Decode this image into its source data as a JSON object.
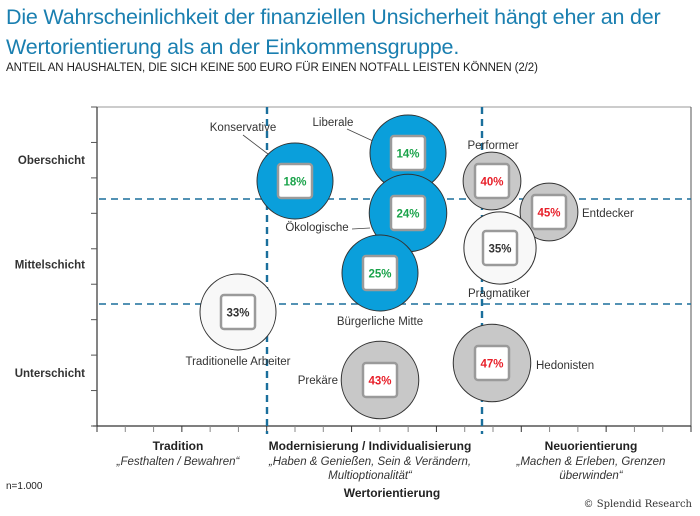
{
  "header": {
    "title": "Die Wahrscheinlichkeit der finanziellen Unsicherheit hängt eher an der Wertorientierung als an der Einkommensgruppe.",
    "subtitle": "ANTEIL AN HAUSHALTEN, DIE SICH KEINE 500 EURO FÜR EINEN NOTFALL LEISTEN KÖNNEN (2/2)"
  },
  "footer": {
    "sample_note": "n=1.000",
    "credit": "© Splendid Research"
  },
  "colors": {
    "title": "#1a7fb0",
    "blue_fill": "#0a9fdb",
    "gray_fill": "#c8c8c8",
    "white_fill": "#f8f8f8",
    "pct_green": "#1aa34a",
    "pct_red": "#e8202a",
    "pct_dark": "#333333",
    "divider": "#1a6f9c"
  },
  "chart_data": {
    "type": "scatter",
    "subtype": "bubble",
    "title": "Anteil an Haushalten, die sich keine 500 Euro für einen Notfall leisten können",
    "xlabel": "Wertorientierung",
    "ylabel": "",
    "x_categories": [
      {
        "label": "Tradition",
        "sub": "„Festhalten / Bewahren“"
      },
      {
        "label": "Modernisierung / Individualisierung",
        "sub": "„Haben & Genießen, Sein & Verändern, Multioptionalität“"
      },
      {
        "label": "Neuorientierung",
        "sub": "„Machen & Erleben, Grenzen überwinden“"
      }
    ],
    "y_categories": [
      "Unterschicht",
      "Mittelschicht",
      "Oberschicht"
    ],
    "xlim": [
      0,
      3
    ],
    "ylim": [
      0,
      3
    ],
    "grid": false,
    "dividers": {
      "x": [
        1,
        2
      ],
      "y": [
        1,
        2
      ]
    },
    "x_minor_ticks_per_unit": 7,
    "y_minor_ticks_per_unit": 3,
    "points": [
      {
        "name": "Konservative",
        "x": 0.99,
        "y": 2.51,
        "value": 18,
        "label": "18%",
        "group": "blue",
        "size": 1.0,
        "label_pos": "top-left-leader"
      },
      {
        "name": "Liberale",
        "x": 1.53,
        "y": 2.78,
        "value": 14,
        "label": "14%",
        "group": "blue",
        "size": 1.0,
        "label_pos": "top-left-leader"
      },
      {
        "name": "Ökologische",
        "x": 1.53,
        "y": 2.22,
        "value": 24,
        "label": "24%",
        "group": "blue",
        "size": 1.02,
        "label_pos": "left-leader"
      },
      {
        "name": "Bürgerliche Mitte",
        "x": 1.39,
        "y": 1.65,
        "value": 25,
        "label": "25%",
        "group": "blue",
        "size": 1.0,
        "label_pos": "bottom"
      },
      {
        "name": "Performer",
        "x": 1.97,
        "y": 2.51,
        "value": 40,
        "label": "40%",
        "group": "gray",
        "size": 0.76,
        "label_pos": "top"
      },
      {
        "name": "Entdecker",
        "x": 2.25,
        "y": 2.22,
        "value": 45,
        "label": "45%",
        "group": "gray",
        "size": 0.76,
        "label_pos": "right"
      },
      {
        "name": "Pragmatiker",
        "x": 2.01,
        "y": 1.88,
        "value": 35,
        "label": "35%",
        "group": "white",
        "size": 0.95,
        "label_pos": "bottom"
      },
      {
        "name": "Traditionelle Arbeiter",
        "x": 0.68,
        "y": 1.07,
        "value": 33,
        "label": "33%",
        "group": "white",
        "size": 1.0,
        "label_pos": "bottom"
      },
      {
        "name": "Prekäre",
        "x": 1.39,
        "y": 0.43,
        "value": 43,
        "label": "43%",
        "group": "gray",
        "size": 1.02,
        "label_pos": "left"
      },
      {
        "name": "Hedonisten",
        "x": 1.97,
        "y": 0.59,
        "value": 47,
        "label": "47%",
        "group": "gray",
        "size": 1.02,
        "label_pos": "right"
      }
    ]
  }
}
